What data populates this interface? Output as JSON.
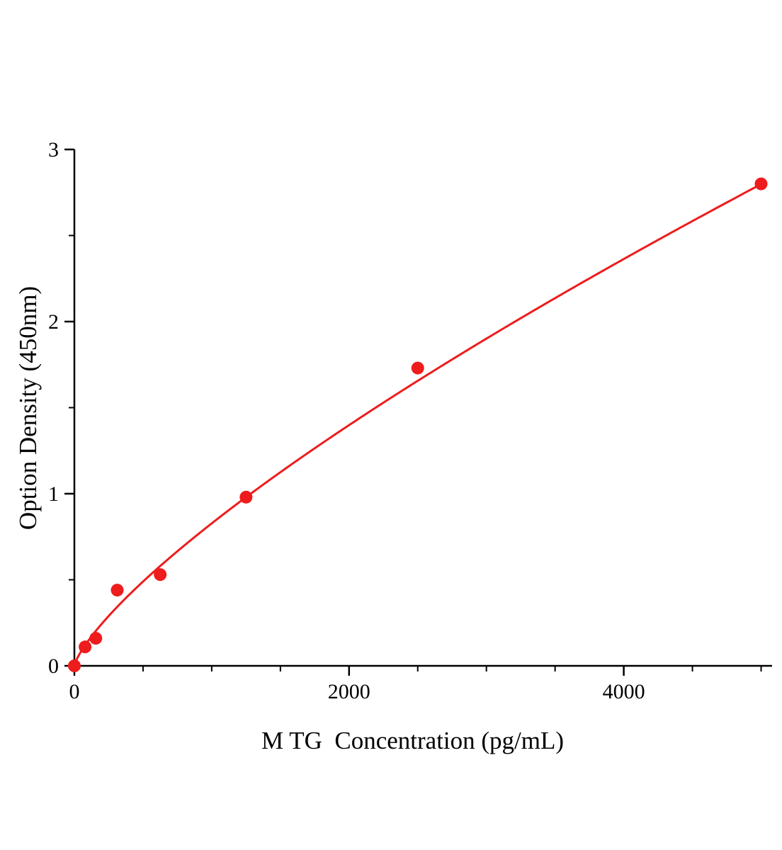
{
  "accent_color": "#ee1c1c",
  "axis_color": "#000000",
  "chart_data": {
    "type": "scatter",
    "title": "",
    "xlabel": "M TG  Concentration (pg/mL)",
    "ylabel": "Option Density (450nm)",
    "x": [
      0,
      78,
      156,
      312,
      625,
      1250,
      2500,
      5000
    ],
    "y": [
      0.0,
      0.11,
      0.16,
      0.44,
      0.53,
      0.98,
      1.73,
      2.8
    ],
    "xlim": [
      0,
      5080
    ],
    "ylim": [
      0,
      3
    ],
    "x_major_ticks": [
      0,
      2000,
      4000
    ],
    "x_tick_labels": [
      "0",
      "2000",
      "4000"
    ],
    "x_minor_step": 500,
    "y_major_ticks": [
      0,
      1,
      2,
      3
    ],
    "y_tick_labels": [
      "0",
      "1",
      "2",
      "3"
    ],
    "y_minor_step": 0.5,
    "fit_curve": {
      "type": "power",
      "a": 0.004434,
      "b": 0.757,
      "x_start": 0,
      "x_end": 5000
    },
    "marker_color": "#ee1c1c",
    "line_color": "#ee1c1c",
    "grid": false,
    "legend": "none"
  }
}
